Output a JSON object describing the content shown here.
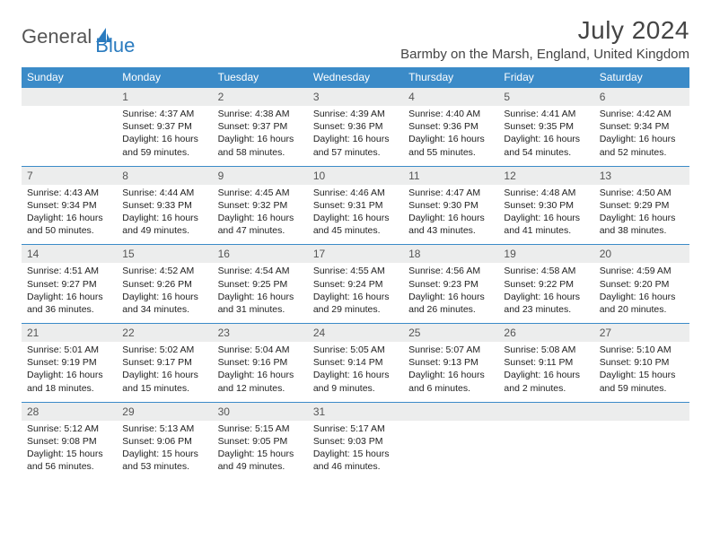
{
  "brand": {
    "word1": "General",
    "word2": "Blue",
    "text_color": "#555555",
    "accent_color": "#2a7bbf"
  },
  "header": {
    "month_title": "July 2024",
    "location": "Barmby on the Marsh, England, United Kingdom"
  },
  "colors": {
    "th_bg": "#3b8bc8",
    "th_text": "#ffffff",
    "daynum_bg": "#eceded",
    "row_border": "#3b8bc8",
    "body_text": "#222222"
  },
  "day_headers": [
    "Sunday",
    "Monday",
    "Tuesday",
    "Wednesday",
    "Thursday",
    "Friday",
    "Saturday"
  ],
  "weeks": [
    {
      "nums": [
        "",
        "1",
        "2",
        "3",
        "4",
        "5",
        "6"
      ],
      "cells": [
        null,
        {
          "sunrise": "4:37 AM",
          "sunset": "9:37 PM",
          "daylight": "16 hours and 59 minutes."
        },
        {
          "sunrise": "4:38 AM",
          "sunset": "9:37 PM",
          "daylight": "16 hours and 58 minutes."
        },
        {
          "sunrise": "4:39 AM",
          "sunset": "9:36 PM",
          "daylight": "16 hours and 57 minutes."
        },
        {
          "sunrise": "4:40 AM",
          "sunset": "9:36 PM",
          "daylight": "16 hours and 55 minutes."
        },
        {
          "sunrise": "4:41 AM",
          "sunset": "9:35 PM",
          "daylight": "16 hours and 54 minutes."
        },
        {
          "sunrise": "4:42 AM",
          "sunset": "9:34 PM",
          "daylight": "16 hours and 52 minutes."
        }
      ]
    },
    {
      "nums": [
        "7",
        "8",
        "9",
        "10",
        "11",
        "12",
        "13"
      ],
      "cells": [
        {
          "sunrise": "4:43 AM",
          "sunset": "9:34 PM",
          "daylight": "16 hours and 50 minutes."
        },
        {
          "sunrise": "4:44 AM",
          "sunset": "9:33 PM",
          "daylight": "16 hours and 49 minutes."
        },
        {
          "sunrise": "4:45 AM",
          "sunset": "9:32 PM",
          "daylight": "16 hours and 47 minutes."
        },
        {
          "sunrise": "4:46 AM",
          "sunset": "9:31 PM",
          "daylight": "16 hours and 45 minutes."
        },
        {
          "sunrise": "4:47 AM",
          "sunset": "9:30 PM",
          "daylight": "16 hours and 43 minutes."
        },
        {
          "sunrise": "4:48 AM",
          "sunset": "9:30 PM",
          "daylight": "16 hours and 41 minutes."
        },
        {
          "sunrise": "4:50 AM",
          "sunset": "9:29 PM",
          "daylight": "16 hours and 38 minutes."
        }
      ]
    },
    {
      "nums": [
        "14",
        "15",
        "16",
        "17",
        "18",
        "19",
        "20"
      ],
      "cells": [
        {
          "sunrise": "4:51 AM",
          "sunset": "9:27 PM",
          "daylight": "16 hours and 36 minutes."
        },
        {
          "sunrise": "4:52 AM",
          "sunset": "9:26 PM",
          "daylight": "16 hours and 34 minutes."
        },
        {
          "sunrise": "4:54 AM",
          "sunset": "9:25 PM",
          "daylight": "16 hours and 31 minutes."
        },
        {
          "sunrise": "4:55 AM",
          "sunset": "9:24 PM",
          "daylight": "16 hours and 29 minutes."
        },
        {
          "sunrise": "4:56 AM",
          "sunset": "9:23 PM",
          "daylight": "16 hours and 26 minutes."
        },
        {
          "sunrise": "4:58 AM",
          "sunset": "9:22 PM",
          "daylight": "16 hours and 23 minutes."
        },
        {
          "sunrise": "4:59 AM",
          "sunset": "9:20 PM",
          "daylight": "16 hours and 20 minutes."
        }
      ]
    },
    {
      "nums": [
        "21",
        "22",
        "23",
        "24",
        "25",
        "26",
        "27"
      ],
      "cells": [
        {
          "sunrise": "5:01 AM",
          "sunset": "9:19 PM",
          "daylight": "16 hours and 18 minutes."
        },
        {
          "sunrise": "5:02 AM",
          "sunset": "9:17 PM",
          "daylight": "16 hours and 15 minutes."
        },
        {
          "sunrise": "5:04 AM",
          "sunset": "9:16 PM",
          "daylight": "16 hours and 12 minutes."
        },
        {
          "sunrise": "5:05 AM",
          "sunset": "9:14 PM",
          "daylight": "16 hours and 9 minutes."
        },
        {
          "sunrise": "5:07 AM",
          "sunset": "9:13 PM",
          "daylight": "16 hours and 6 minutes."
        },
        {
          "sunrise": "5:08 AM",
          "sunset": "9:11 PM",
          "daylight": "16 hours and 2 minutes."
        },
        {
          "sunrise": "5:10 AM",
          "sunset": "9:10 PM",
          "daylight": "15 hours and 59 minutes."
        }
      ]
    },
    {
      "nums": [
        "28",
        "29",
        "30",
        "31",
        "",
        "",
        ""
      ],
      "cells": [
        {
          "sunrise": "5:12 AM",
          "sunset": "9:08 PM",
          "daylight": "15 hours and 56 minutes."
        },
        {
          "sunrise": "5:13 AM",
          "sunset": "9:06 PM",
          "daylight": "15 hours and 53 minutes."
        },
        {
          "sunrise": "5:15 AM",
          "sunset": "9:05 PM",
          "daylight": "15 hours and 49 minutes."
        },
        {
          "sunrise": "5:17 AM",
          "sunset": "9:03 PM",
          "daylight": "15 hours and 46 minutes."
        },
        null,
        null,
        null
      ]
    }
  ],
  "labels": {
    "sunrise_prefix": "Sunrise: ",
    "sunset_prefix": "Sunset: ",
    "daylight_prefix": "Daylight: "
  }
}
